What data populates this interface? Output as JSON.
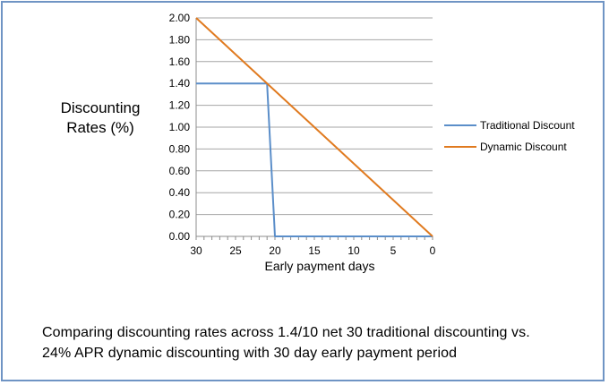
{
  "chart_data": {
    "type": "line",
    "title": "",
    "xlabel": "Early payment days",
    "ylabel_lines": [
      "Discounting",
      "Rates (%)"
    ],
    "x_reversed": true,
    "xlim": [
      0,
      30
    ],
    "ylim": [
      0,
      2
    ],
    "x_ticks": [
      "30",
      "25",
      "20",
      "15",
      "10",
      "5",
      "0"
    ],
    "y_ticks": [
      "0.00",
      "0.20",
      "0.40",
      "0.60",
      "0.80",
      "1.00",
      "1.20",
      "1.40",
      "1.60",
      "1.80",
      "2.00"
    ],
    "grid": "horizontal",
    "legend_position": "right",
    "series": [
      {
        "name": "Traditional Discount",
        "color": "#5b8ec9",
        "points": [
          [
            30,
            1.4
          ],
          [
            21,
            1.4
          ],
          [
            20,
            0
          ],
          [
            0,
            0
          ]
        ]
      },
      {
        "name": "Dynamic Discount",
        "color": "#e07a1f",
        "points": [
          [
            30,
            2.0
          ],
          [
            0,
            0
          ]
        ]
      }
    ]
  },
  "caption": {
    "line1": "Comparing discounting rates across 1.4/10 net 30 traditional discounting vs.",
    "line2": "24% APR  dynamic discounting with 30 day early payment period"
  }
}
